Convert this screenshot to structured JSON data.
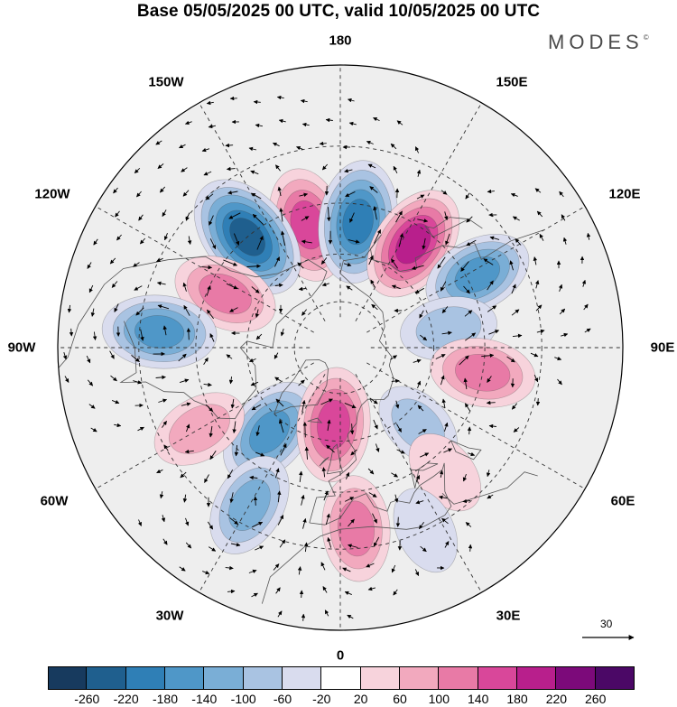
{
  "title": "Base 05/05/2025 00 UTC, valid 10/05/2025 00 UTC",
  "brand": "MODES",
  "brand_mark": "©",
  "longitude_labels": {
    "top": "180",
    "bottom": "0",
    "left": "90W",
    "right": "90E",
    "upper_left_1": "150W",
    "upper_left_2": "120W",
    "upper_right_1": "150E",
    "upper_right_2": "120E",
    "lower_left_1": "60W",
    "lower_left_2": "30W",
    "lower_right_1": "60E",
    "lower_right_2": "30E"
  },
  "reference_vector": {
    "value": "30"
  },
  "colorbar": {
    "ticks": [
      "-260",
      "-220",
      "-180",
      "-140",
      "-100",
      "-60",
      "-20",
      "20",
      "60",
      "100",
      "140",
      "180",
      "220",
      "260"
    ],
    "colors": [
      "#173a5e",
      "#1f5f8e",
      "#2f7fb6",
      "#4f97c8",
      "#7aaed6",
      "#a9c3e2",
      "#d9dcee",
      "#ffffff",
      "#f7d3dc",
      "#f2a9be",
      "#e87aa6",
      "#d9479a",
      "#b81f8c",
      "#7c0a7a",
      "#4b0866"
    ]
  },
  "map_data": {
    "projection": "north-polar-stereographic",
    "field": "geopotential height anomaly",
    "anomaly_centers": [
      {
        "id": "pos-150w-a",
        "sign": "positive",
        "lon": -165,
        "lat": 50,
        "strength": 180
      },
      {
        "id": "neg-150w",
        "sign": "negative",
        "lon": -140,
        "lat": 45,
        "strength": -260
      },
      {
        "id": "neg-170e",
        "sign": "negative",
        "lon": 172,
        "lat": 50,
        "strength": -220
      },
      {
        "id": "pos-150e",
        "sign": "positive",
        "lon": 145,
        "lat": 50,
        "strength": 200
      },
      {
        "id": "neg-120e",
        "sign": "negative",
        "lon": 118,
        "lat": 42,
        "strength": -160
      },
      {
        "id": "neg-100e",
        "sign": "negative",
        "lon": 100,
        "lat": 55,
        "strength": -100
      },
      {
        "id": "pos-80e",
        "sign": "positive",
        "lon": 80,
        "lat": 45,
        "strength": 140
      },
      {
        "id": "pos-115w",
        "sign": "positive",
        "lon": -115,
        "lat": 50,
        "strength": 140
      },
      {
        "id": "neg-95w",
        "sign": "negative",
        "lon": -95,
        "lat": 35,
        "strength": -180
      },
      {
        "id": "neg-40w",
        "sign": "negative",
        "lon": -40,
        "lat": 55,
        "strength": -180
      },
      {
        "id": "pos-5w",
        "sign": "positive",
        "lon": -5,
        "lat": 65,
        "strength": 180
      },
      {
        "id": "pos-60w",
        "sign": "positive",
        "lon": -60,
        "lat": 40,
        "strength": 100
      },
      {
        "id": "neg-35w",
        "sign": "negative",
        "lon": -30,
        "lat": 35,
        "strength": -140
      },
      {
        "id": "pos-5e",
        "sign": "positive",
        "lon": 5,
        "lat": 35,
        "strength": 140
      },
      {
        "id": "neg-45e",
        "sign": "negative",
        "lon": 45,
        "lat": 55,
        "strength": -80
      },
      {
        "id": "pos-40e",
        "sign": "positive",
        "lon": 40,
        "lat": 40,
        "strength": 60
      },
      {
        "id": "neg-25e",
        "sign": "negative",
        "lon": 25,
        "lat": 30,
        "strength": -60
      }
    ]
  }
}
